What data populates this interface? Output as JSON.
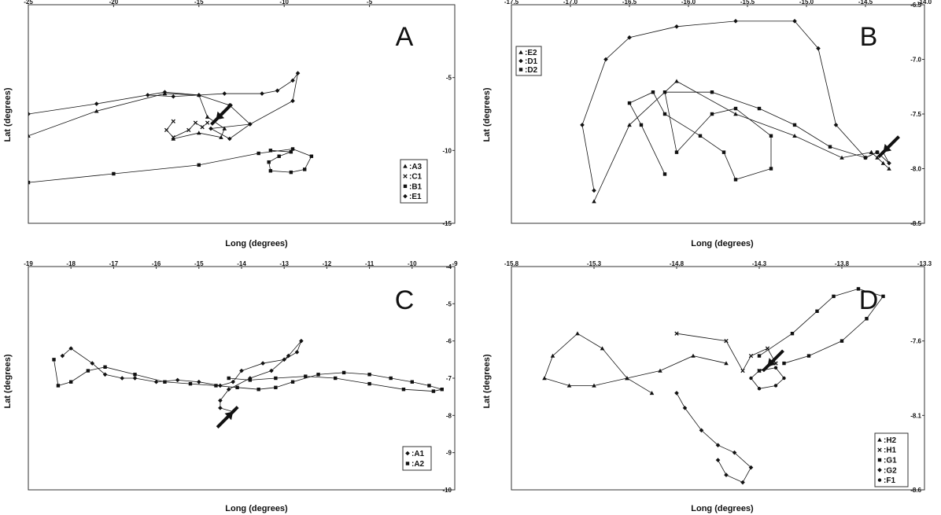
{
  "figure": {
    "panels": [
      {
        "letter": "A",
        "xlabel": "Long (degrees)",
        "ylabel": "Lat (degrees)",
        "arrow": {
          "x": -14,
          "y": -7.9
        },
        "legend": [
          "A3",
          "C1",
          "B1",
          "E1"
        ]
      },
      {
        "letter": "B",
        "xlabel": "Long (degrees)",
        "ylabel": "Lat (degrees)",
        "arrow": {
          "x": -14.35,
          "y": -7.85
        },
        "legend": [
          "E2",
          "D1",
          "D2"
        ]
      },
      {
        "letter": "C",
        "xlabel": "Long (degrees)",
        "ylabel": "Lat (degrees)",
        "arrow": {
          "x": -14.2,
          "y": -7.9
        },
        "legend": [
          "A1",
          "A2"
        ]
      },
      {
        "letter": "D",
        "xlabel": "Long (degrees)",
        "ylabel": "Lat (degrees)",
        "arrow": {
          "x": -14.25,
          "y": -7.77
        },
        "legend": [
          "H2",
          "H1",
          "G1",
          "G2",
          "F1"
        ]
      }
    ]
  },
  "chart_data": [
    {
      "type": "line",
      "title": "",
      "xlabel": "Long (degrees)",
      "ylabel": "Lat (degrees)",
      "xlim": [
        -25,
        0
      ],
      "ylim": [
        -15,
        0
      ],
      "xticks": [
        "-25",
        "-20",
        "-15",
        "-10",
        "-5"
      ],
      "yticks": [
        "-5",
        "-10",
        "-15"
      ],
      "xtick_values": [
        -25,
        -20,
        -15,
        -10,
        -5
      ],
      "ytick_values": [
        -5,
        -10,
        -15
      ],
      "legend_position": "bottom-right",
      "series": [
        {
          "name": "A3",
          "marker": "triangle",
          "x": [
            -25,
            -21,
            -17,
            -15,
            -14.5,
            -13.5,
            -13.7,
            -15,
            -16.5
          ],
          "y": [
            -9,
            -7.3,
            -6.1,
            -6.2,
            -7.7,
            -8.5,
            -9.1,
            -8.8,
            -9.2
          ]
        },
        {
          "name": "C1",
          "marker": "x",
          "x": [
            -16.5,
            -16.9,
            -16.5,
            -15.6,
            -15.2,
            -14.8,
            -14.5
          ],
          "y": [
            -8,
            -8.6,
            -9.1,
            -8.6,
            -8.1,
            -8.4,
            -8.1
          ]
        },
        {
          "name": "B1",
          "marker": "square",
          "x": [
            -25,
            -20,
            -15,
            -11.5,
            -9.5,
            -8.4,
            -8.8,
            -9.6,
            -10.8,
            -10.9,
            -10.3,
            -9.6,
            -10.8
          ],
          "y": [
            -12.2,
            -11.6,
            -11,
            -10.2,
            -9.9,
            -10.4,
            -11.3,
            -11.5,
            -11.4,
            -10.8,
            -10.4,
            -10.1,
            -10
          ],
          "note": ""
        },
        {
          "name": "E1",
          "marker": "diamond",
          "x": [
            -25,
            -21,
            -17,
            -15,
            -13.2,
            -12,
            -13.2,
            -14.3,
            -12,
            -9.5,
            -9.2,
            -9.5,
            -10.4,
            -11.3,
            -13.5,
            -16.5,
            -18
          ],
          "y": [
            -7.5,
            -6.8,
            -6,
            -6.2,
            -6.9,
            -8.2,
            -9.2,
            -8.5,
            -8.2,
            -6.6,
            -4.7,
            -5.2,
            -5.9,
            -6.1,
            -6.1,
            -6.3,
            -6.2
          ]
        }
      ]
    },
    {
      "type": "line",
      "title": "",
      "xlabel": "Long (degrees)",
      "ylabel": "Lat (degrees)",
      "xlim": [
        -17.5,
        -14
      ],
      "ylim": [
        -8.5,
        -6.5
      ],
      "xticks": [
        "-17.5",
        "-17.0",
        "-16.5",
        "-16.0",
        "-15.5",
        "-15.0",
        "-14.5",
        "-14.0"
      ],
      "yticks": [
        "-6.5",
        "-7.0",
        "-7.5",
        "-8.0",
        "-8.5"
      ],
      "xtick_values": [
        -17.5,
        -17,
        -16.5,
        -16,
        -15.5,
        -15,
        -14.5,
        -14
      ],
      "ytick_values": [
        -6.5,
        -7,
        -7.5,
        -8,
        -8.5
      ],
      "legend_position": "top-left",
      "series": [
        {
          "name": "E2",
          "marker": "triangle",
          "x": [
            -16.8,
            -16.5,
            -16.1,
            -15.6,
            -15.1,
            -14.7,
            -14.45,
            -14.4,
            -14.3,
            -14.35,
            -14.45
          ],
          "y": [
            -8.3,
            -7.6,
            -7.2,
            -7.5,
            -7.7,
            -7.9,
            -7.85,
            -7.9,
            -8,
            -7.95,
            -7.85
          ]
        },
        {
          "name": "D1",
          "marker": "diamond",
          "x": [
            -16.8,
            -16.9,
            -16.7,
            -16.5,
            -16.1,
            -15.6,
            -15.1,
            -14.9,
            -14.75,
            -14.5,
            -14.4,
            -14.3,
            -14.35
          ],
          "y": [
            -8.2,
            -7.6,
            -7,
            -6.8,
            -6.7,
            -6.65,
            -6.65,
            -6.9,
            -7.6,
            -7.9,
            -7.85,
            -7.95,
            -7.85
          ]
        },
        {
          "name": "D2",
          "marker": "square",
          "x": [
            -16.2,
            -16.4,
            -16.5,
            -16.3,
            -16.2,
            -15.9,
            -15.7,
            -15.6,
            -15.3,
            -15.3,
            -15.6,
            -15.8,
            -16.1,
            -16.2,
            -15.8,
            -15.4,
            -15.1,
            -14.8,
            -14.5,
            -14.4
          ],
          "y": [
            -8.05,
            -7.6,
            -7.4,
            -7.3,
            -7.5,
            -7.7,
            -7.85,
            -8.1,
            -8.0,
            -7.7,
            -7.45,
            -7.5,
            -7.85,
            -7.3,
            -7.3,
            -7.45,
            -7.6,
            -7.8,
            -7.9,
            -7.85
          ]
        }
      ]
    },
    {
      "type": "line",
      "title": "",
      "xlabel": "Long (degrees)",
      "ylabel": "Lat (degrees)",
      "xlim": [
        -19,
        -9
      ],
      "ylim": [
        -10,
        -4
      ],
      "xticks": [
        "-19",
        "-18",
        "-17",
        "-16",
        "-15",
        "-14",
        "-13",
        "-12",
        "-11",
        "-10",
        "-9"
      ],
      "yticks": [
        "-4",
        "-5",
        "-6",
        "-7",
        "-8",
        "-9",
        "-10"
      ],
      "xtick_values": [
        -19,
        -18,
        -17,
        -16,
        -15,
        -14,
        -13,
        -12,
        -11,
        -10,
        -9
      ],
      "ytick_values": [
        -4,
        -5,
        -6,
        -7,
        -8,
        -9,
        -10
      ],
      "legend_position": "bottom-right",
      "series": [
        {
          "name": "A1",
          "marker": "diamond",
          "x": [
            -18.2,
            -18.0,
            -17.5,
            -17.2,
            -16.8,
            -16.5,
            -16.0,
            -15.5,
            -15.0,
            -14.5,
            -14.2,
            -14.0,
            -13.5,
            -13.0,
            -12.7,
            -12.6,
            -12.9,
            -13.3,
            -13.8,
            -14.3,
            -14.5,
            -14.5,
            -14.2
          ],
          "y": [
            -6.4,
            -6.2,
            -6.6,
            -6.9,
            -7.0,
            -7.0,
            -7.1,
            -7.05,
            -7.1,
            -7.2,
            -7.1,
            -6.8,
            -6.6,
            -6.5,
            -6.3,
            -6.0,
            -6.4,
            -6.8,
            -7.0,
            -7.3,
            -7.6,
            -7.8,
            -7.9
          ]
        },
        {
          "name": "A2",
          "marker": "square",
          "x": [
            -18.4,
            -18.3,
            -18.0,
            -17.6,
            -17.2,
            -16.5,
            -15.8,
            -15.2,
            -14.6,
            -14.1,
            -13.6,
            -13.2,
            -12.8,
            -12.2,
            -11.6,
            -11.0,
            -10.5,
            -10.0,
            -9.6,
            -9.3,
            -9.5,
            -10.2,
            -11.0,
            -11.8,
            -12.5,
            -13.2,
            -13.8,
            -14.3
          ],
          "y": [
            -6.5,
            -7.2,
            -7.1,
            -6.8,
            -6.7,
            -6.9,
            -7.1,
            -7.15,
            -7.2,
            -7.25,
            -7.3,
            -7.25,
            -7.1,
            -6.9,
            -6.85,
            -6.9,
            -7.0,
            -7.1,
            -7.2,
            -7.3,
            -7.35,
            -7.3,
            -7.15,
            -7.0,
            -6.95,
            -7.0,
            -7.05,
            -7.0
          ]
        }
      ]
    },
    {
      "type": "line",
      "title": "",
      "xlabel": "Long (degrees)",
      "ylabel": "Lat (degrees)",
      "xlim": [
        -15.8,
        -13.3
      ],
      "ylim": [
        -8.6,
        -7.1
      ],
      "xticks": [
        "-15.8",
        "-15.3",
        "-14.8",
        "-14.3",
        "-13.8",
        "-13.3"
      ],
      "yticks": [
        "-7.6",
        "-8.1",
        "-8.6"
      ],
      "xtick_values": [
        -15.8,
        -15.3,
        -14.8,
        -14.3,
        -13.8,
        -13.3
      ],
      "ytick_values": [
        -7.6,
        -8.1,
        -8.6
      ],
      "legend_position": "bottom-right",
      "series": [
        {
          "name": "H2",
          "marker": "triangle",
          "x": [
            -14.95,
            -15.1,
            -15.25,
            -15.4,
            -15.55,
            -15.6,
            -15.45,
            -15.3,
            -15.1,
            -14.9,
            -14.7,
            -14.5
          ],
          "y": [
            -7.95,
            -7.85,
            -7.65,
            -7.55,
            -7.7,
            -7.85,
            -7.9,
            -7.9,
            -7.85,
            -7.8,
            -7.7,
            -7.75
          ]
        },
        {
          "name": "H1",
          "marker": "x",
          "x": [
            -14.8,
            -14.5,
            -14.4,
            -14.35,
            -14.25,
            -14.2,
            -14.3
          ],
          "y": [
            -7.55,
            -7.6,
            -7.8,
            -7.7,
            -7.65,
            -7.75,
            -7.8
          ]
        },
        {
          "name": "G1",
          "marker": "square",
          "x": [
            -14.3,
            -14.1,
            -13.95,
            -13.85,
            -13.7,
            -13.55,
            -13.65,
            -13.8,
            -14.0,
            -14.15
          ],
          "y": [
            -7.7,
            -7.55,
            -7.4,
            -7.3,
            -7.25,
            -7.3,
            -7.45,
            -7.6,
            -7.7,
            -7.75
          ]
        },
        {
          "name": "G2",
          "marker": "diamond",
          "x": [
            -14.8,
            -14.75,
            -14.65,
            -14.55,
            -14.45,
            -14.35,
            -14.4,
            -14.5,
            -14.55
          ],
          "y": [
            -7.95,
            -8.05,
            -8.2,
            -8.3,
            -8.35,
            -8.45,
            -8.55,
            -8.5,
            -8.4
          ]
        },
        {
          "name": "F1",
          "marker": "circle",
          "x": [
            -14.3,
            -14.2,
            -14.15,
            -14.2,
            -14.3,
            -14.35,
            -14.3
          ],
          "y": [
            -7.8,
            -7.78,
            -7.85,
            -7.9,
            -7.92,
            -7.85,
            -7.8
          ]
        }
      ]
    }
  ]
}
